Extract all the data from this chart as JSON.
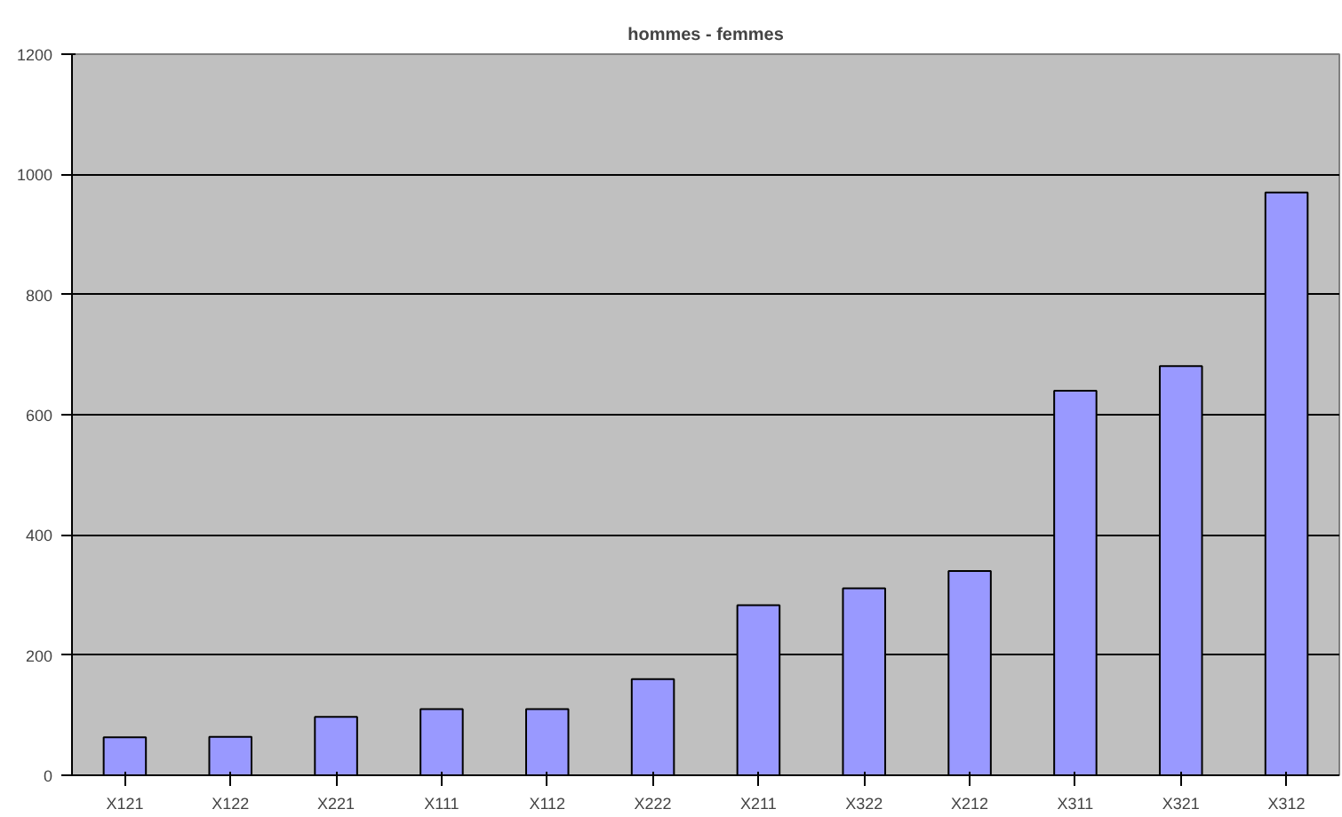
{
  "chart_data": {
    "type": "bar",
    "title": "hommes - femmes",
    "categories": [
      "X121",
      "X122",
      "X221",
      "X111",
      "X112",
      "X222",
      "X211",
      "X322",
      "X212",
      "X311",
      "X321",
      "X312"
    ],
    "values": [
      63,
      64,
      97,
      110,
      110,
      160,
      283,
      311,
      340,
      640,
      681,
      970
    ],
    "color": "#9999ff",
    "ylim": [
      0,
      1200
    ],
    "yticks": [
      0,
      200,
      400,
      600,
      800,
      1000,
      1200
    ],
    "grid": "y"
  }
}
